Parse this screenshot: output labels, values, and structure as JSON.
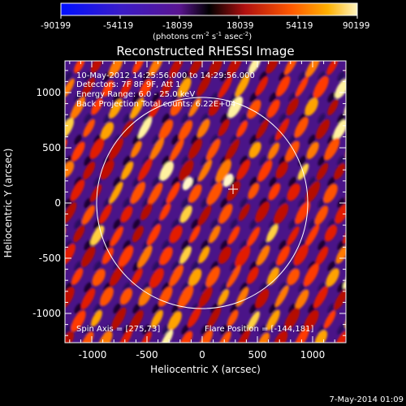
{
  "colorbar": {
    "ticks": [
      "-90199",
      "-54119",
      "-18039",
      "18039",
      "54119",
      "90199"
    ],
    "units": {
      "main": "(photons cm",
      "exp1": "-2",
      "s": " s",
      "exp2": "-1",
      "asec": " asec",
      "exp3": "-2",
      "close": ")"
    }
  },
  "plot": {
    "title": "Reconstructed RHESSI Image",
    "annotations": {
      "time_range": "10-May-2012 14:25:56.000 to 14:29:56.000",
      "detectors": "Detectors: 7F 8F 9F, Att 1",
      "energy": "Energy Range: 6.0 - 25.0 keV",
      "method": "Back Projection    Total counts: 6.22E+04",
      "spin_axis": "Spin Axis = [275,73]",
      "flare_position": "Flare Position = [-144,181]"
    },
    "x_axis": {
      "label": "Heliocentric X (arcsec)",
      "ticks": [
        "-1000",
        "-500",
        "0",
        "500",
        "1000"
      ]
    },
    "y_axis": {
      "label": "Heliocentric Y (arcsec)",
      "ticks": [
        "1000",
        "500",
        "0",
        "-500",
        "-1000"
      ]
    }
  },
  "footer": {
    "timestamp": "7-May-2014 01:09"
  },
  "colors": {
    "background": "#000000",
    "axes": "#ffffff",
    "colormap": [
      "#0010ff",
      "#3a1cc8",
      "#5a1590",
      "#000000",
      "#b01010",
      "#ff5a00",
      "#ffb000",
      "#fff5c0"
    ]
  }
}
